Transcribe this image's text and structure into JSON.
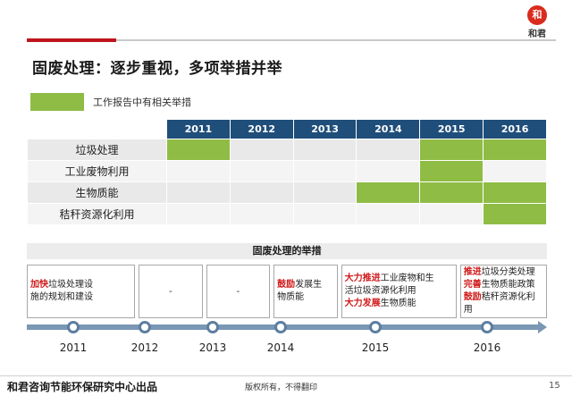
{
  "logo": {
    "mark": "和",
    "name": "和君"
  },
  "title": "固废处理：逐步重视，多项举措并举",
  "legend": {
    "label": "工作报告中有相关举措",
    "color": "#8fbc45"
  },
  "grid": {
    "years": [
      "2011",
      "2012",
      "2013",
      "2014",
      "2015",
      "2016"
    ],
    "rows": [
      {
        "label": "垃圾处理",
        "flags": [
          true,
          false,
          false,
          false,
          true,
          true
        ]
      },
      {
        "label": "工业废物利用",
        "flags": [
          false,
          false,
          false,
          false,
          true,
          false
        ]
      },
      {
        "label": "生物质能",
        "flags": [
          false,
          false,
          false,
          true,
          true,
          true
        ]
      },
      {
        "label": "秸秆资源化利用",
        "flags": [
          false,
          false,
          false,
          false,
          false,
          true
        ]
      }
    ]
  },
  "measures": {
    "title": "固废处理的举措",
    "boxes": [
      {
        "lines": [
          [
            {
              "t": "加快",
              "hl": true
            },
            {
              "t": "垃圾处理设"
            }
          ],
          [
            {
              "t": "施的规划和建设"
            }
          ]
        ]
      },
      {
        "dash": "-"
      },
      {
        "dash": "-"
      },
      {
        "lines": [
          [
            {
              "t": "鼓励",
              "hl": true
            },
            {
              "t": "发展生"
            }
          ],
          [
            {
              "t": "物质能"
            }
          ]
        ]
      },
      {
        "lines": [
          [
            {
              "t": "大力推进",
              "hl": true
            },
            {
              "t": "工业废物和生"
            }
          ],
          [
            {
              "t": "活垃圾资源化利用"
            }
          ],
          [
            {
              "t": "大力发展",
              "hl": true
            },
            {
              "t": "生物质能"
            }
          ]
        ]
      },
      {
        "lines": [
          [
            {
              "t": "推进",
              "hl": true
            },
            {
              "t": "垃圾分类处理"
            }
          ],
          [
            {
              "t": "完善",
              "hl": true
            },
            {
              "t": "生物质能政策"
            }
          ],
          [
            {
              "t": "鼓励",
              "hl": true
            },
            {
              "t": "秸秆资源化利用"
            }
          ]
        ]
      }
    ]
  },
  "timeline": {
    "years": [
      "2011",
      "2012",
      "2013",
      "2014",
      "2015",
      "2016"
    ]
  },
  "footer": {
    "org": "和君咨询节能环保研究中心出品",
    "copyright": "版权所有，不得翻印",
    "page": "15"
  }
}
